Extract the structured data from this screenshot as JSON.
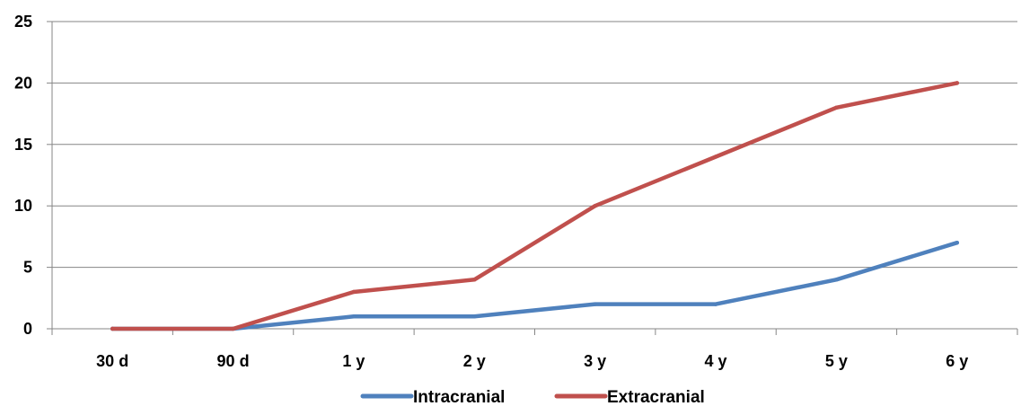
{
  "chart_data": {
    "type": "line",
    "title": "",
    "xlabel": "",
    "ylabel": "",
    "categories": [
      "30 d",
      "90 d",
      "1 y",
      "2 y",
      "3 y",
      "4 y",
      "5 y",
      "6 y"
    ],
    "ylim": [
      0,
      25
    ],
    "yticks": [
      0,
      5,
      10,
      15,
      20,
      25
    ],
    "grid": "horizontal",
    "legend_position": "bottom",
    "series": [
      {
        "name": "Intracranial",
        "color": "#4f81bd",
        "values": [
          0,
          0,
          1,
          1,
          2,
          2,
          4,
          7
        ]
      },
      {
        "name": "Extracranial",
        "color": "#c0504d",
        "values": [
          0,
          0,
          3,
          4,
          10,
          14,
          18,
          20
        ]
      }
    ]
  }
}
